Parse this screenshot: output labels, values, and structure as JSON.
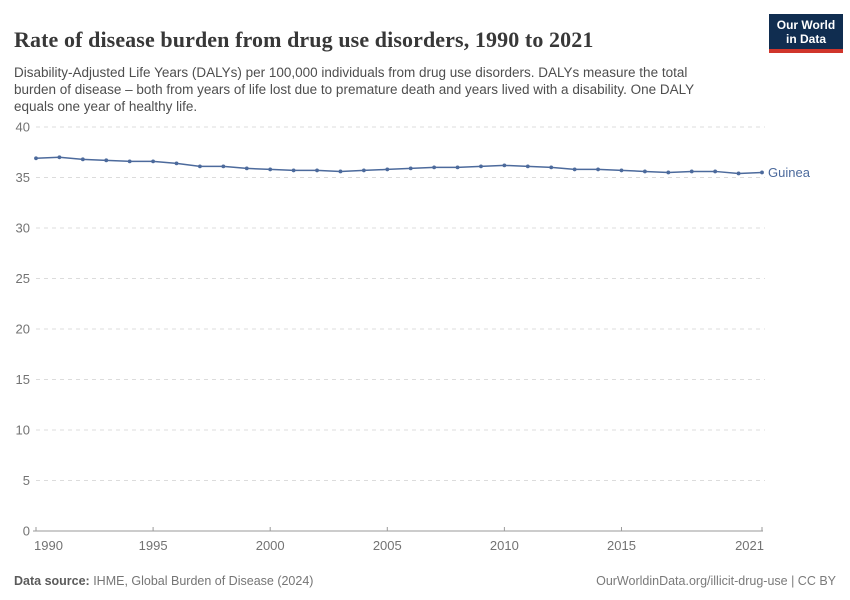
{
  "header": {
    "title": "Rate of disease burden from drug use disorders, 1990 to 2021",
    "subtitle": "Disability-Adjusted Life Years (DALYs) per 100,000 individuals from drug use disorders. DALYs measure the total burden of disease – both from years of life lost due to premature death and years lived with a disability. One DALY equals one year of healthy life.",
    "logo": {
      "line1": "Our World",
      "line2": "in Data"
    }
  },
  "footer": {
    "datasource_label": "Data source:",
    "datasource_value": " IHME, Global Burden of Disease (2024)",
    "link": "OurWorldinData.org/illicit-drug-use | CC BY"
  },
  "colors": {
    "series": "#4c6a9c",
    "grid": "#dcdcdc",
    "axis": "#9a9a9a",
    "tick_text": "#737373",
    "logo_bg": "#102d50",
    "logo_red": "#d0352b"
  },
  "chart_data": {
    "type": "line",
    "title": "Rate of disease burden from drug use disorders, 1990 to 2021",
    "xlabel": "",
    "ylabel": "DALYs per 100,000 individuals",
    "xlim": [
      1990,
      2021
    ],
    "ylim": [
      0,
      40
    ],
    "x_ticks": [
      1990,
      1995,
      2000,
      2005,
      2010,
      2015,
      2021
    ],
    "y_ticks": [
      0,
      5,
      10,
      15,
      20,
      25,
      30,
      35,
      40
    ],
    "grid": "horizontal-dashed",
    "legend_position": "end-of-line-label",
    "categories": [
      1990,
      1991,
      1992,
      1993,
      1994,
      1995,
      1996,
      1997,
      1998,
      1999,
      2000,
      2001,
      2002,
      2003,
      2004,
      2005,
      2006,
      2007,
      2008,
      2009,
      2010,
      2011,
      2012,
      2013,
      2014,
      2015,
      2016,
      2017,
      2018,
      2019,
      2020,
      2021
    ],
    "series": [
      {
        "name": "Guinea",
        "color": "#4c6a9c",
        "values": [
          36.9,
          37.0,
          36.8,
          36.7,
          36.6,
          36.6,
          36.4,
          36.1,
          36.1,
          35.9,
          35.8,
          35.7,
          35.7,
          35.6,
          35.7,
          35.8,
          35.9,
          36.0,
          36.0,
          36.1,
          36.2,
          36.1,
          36.0,
          35.8,
          35.8,
          35.7,
          35.6,
          35.5,
          35.6,
          35.6,
          35.4,
          35.5
        ]
      }
    ]
  }
}
